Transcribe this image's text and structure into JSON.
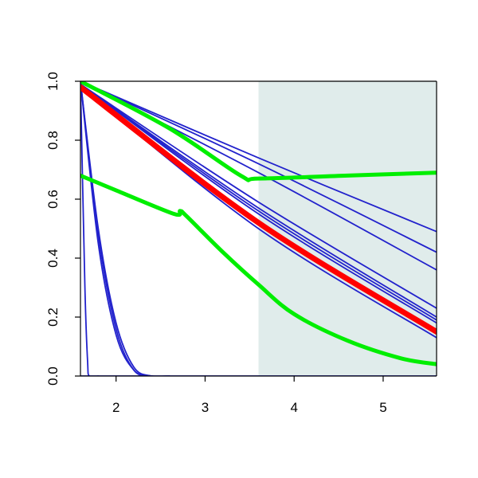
{
  "chart_data": {
    "type": "line",
    "title": "",
    "xlabel": "",
    "ylabel": "",
    "xlim": [
      1.6,
      5.6
    ],
    "ylim": [
      0.0,
      1.0
    ],
    "x_ticks": [
      2,
      3,
      4,
      5
    ],
    "y_ticks": [
      0.0,
      0.2,
      0.4,
      0.6,
      0.8,
      1.0
    ],
    "x_tick_labels": [
      "2",
      "3",
      "4",
      "5"
    ],
    "y_tick_labels": [
      "0.0",
      "0.2",
      "0.4",
      "0.6",
      "0.8",
      "1.0"
    ],
    "shaded_region": {
      "x_from": 3.6,
      "x_to": 5.6,
      "color": "#e0eceb"
    },
    "grid": false,
    "legend": "none",
    "colors": {
      "blue": "#2222cc",
      "red": "#ff0000",
      "green": "#00ee00"
    },
    "series": [
      {
        "color": "blue",
        "x": [
          1.6,
          3.6,
          5.6
        ],
        "y": [
          1.0,
          0.74,
          0.49
        ]
      },
      {
        "color": "blue",
        "x": [
          1.6,
          3.6,
          5.6
        ],
        "y": [
          1.0,
          0.72,
          0.42
        ]
      },
      {
        "color": "blue",
        "x": [
          1.6,
          3.6,
          5.6
        ],
        "y": [
          1.0,
          0.69,
          0.36
        ]
      },
      {
        "color": "blue",
        "x": [
          1.6,
          3.6,
          5.6
        ],
        "y": [
          0.99,
          0.59,
          0.23
        ]
      },
      {
        "color": "blue",
        "x": [
          1.6,
          3.6,
          5.6
        ],
        "y": [
          0.99,
          0.57,
          0.2
        ]
      },
      {
        "color": "blue",
        "x": [
          1.6,
          3.6,
          5.6
        ],
        "y": [
          0.99,
          0.56,
          0.19
        ]
      },
      {
        "color": "blue",
        "x": [
          1.6,
          3.6,
          5.6
        ],
        "y": [
          0.99,
          0.55,
          0.18
        ]
      },
      {
        "color": "blue",
        "x": [
          1.6,
          3.6,
          5.6
        ],
        "y": [
          0.98,
          0.5,
          0.13
        ]
      },
      {
        "color": "blue",
        "x": [
          1.6,
          1.8,
          2.0,
          2.2,
          2.4,
          2.6
        ],
        "y": [
          1.0,
          0.5,
          0.18,
          0.03,
          0.0,
          0.0
        ]
      },
      {
        "color": "blue",
        "x": [
          1.6,
          1.8,
          2.0,
          2.2,
          2.4,
          2.6
        ],
        "y": [
          1.0,
          0.48,
          0.16,
          0.02,
          0.0,
          0.0
        ]
      },
      {
        "color": "blue",
        "x": [
          1.6,
          1.8,
          2.0,
          2.2,
          2.4,
          2.6
        ],
        "y": [
          1.0,
          0.45,
          0.14,
          0.02,
          0.0,
          0.0
        ]
      },
      {
        "color": "blue",
        "x": [
          1.6,
          1.65,
          1.68,
          1.7,
          1.8
        ],
        "y": [
          1.0,
          0.3,
          0.05,
          0.0,
          0.0
        ]
      },
      {
        "color": "blue",
        "x": [
          1.6,
          5.6
        ],
        "y": [
          0.0,
          0.0
        ]
      },
      {
        "color": "red",
        "x": [
          1.6,
          3.6,
          5.6
        ],
        "y": [
          0.98,
          0.52,
          0.15
        ]
      },
      {
        "color": "green",
        "x": [
          1.6,
          2.6,
          3.4,
          3.6,
          4.6,
          5.6
        ],
        "y": [
          1.0,
          0.84,
          0.68,
          0.67,
          0.68,
          0.69
        ]
      },
      {
        "color": "green",
        "x": [
          1.6,
          2.0,
          2.65,
          2.72,
          2.8,
          3.2,
          3.6,
          4.0,
          4.6,
          5.2,
          5.6
        ],
        "y": [
          0.68,
          0.63,
          0.55,
          0.56,
          0.54,
          0.42,
          0.31,
          0.21,
          0.12,
          0.06,
          0.04
        ]
      }
    ]
  }
}
